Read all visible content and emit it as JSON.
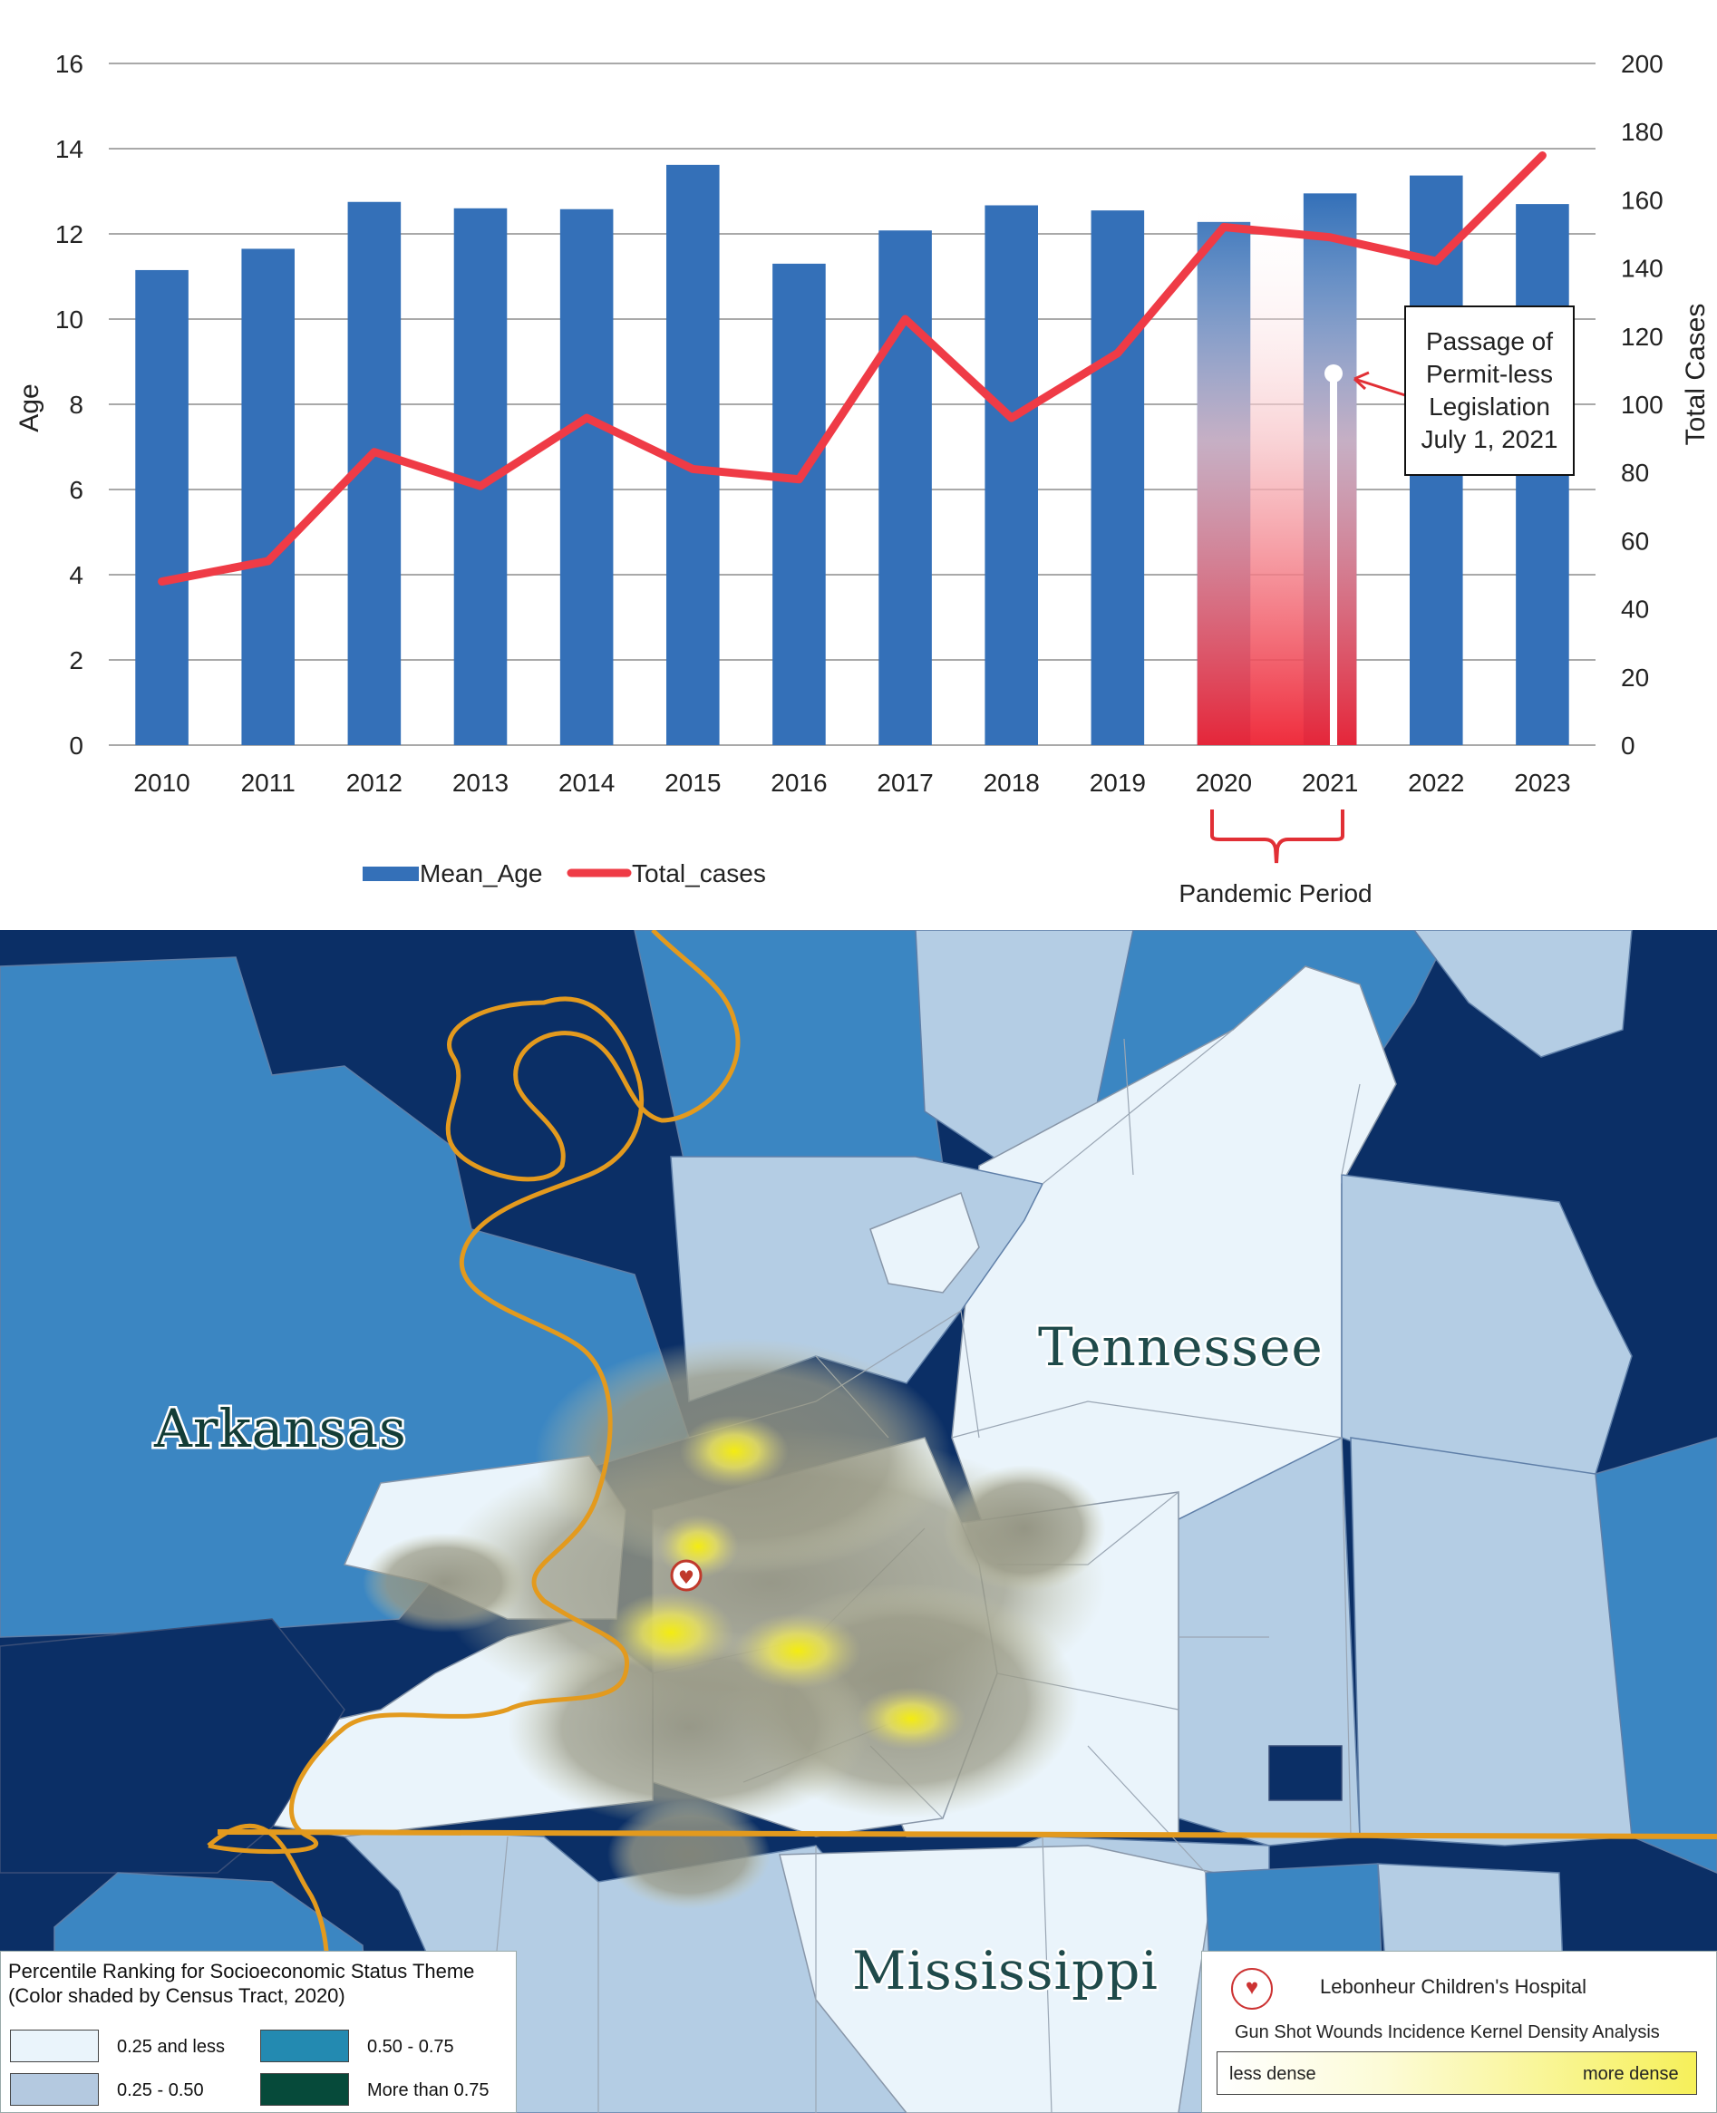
{
  "chart_data": {
    "type": "bar",
    "categories": [
      "2010",
      "2011",
      "2012",
      "2013",
      "2014",
      "2015",
      "2016",
      "2017",
      "2018",
      "2019",
      "2020",
      "2021",
      "2022",
      "2023"
    ],
    "series": [
      {
        "name": "Mean_Age",
        "type": "bar",
        "axis": "left",
        "color": "#3470b8",
        "values": [
          11.15,
          11.65,
          12.75,
          12.6,
          12.58,
          13.62,
          11.3,
          12.08,
          12.67,
          12.55,
          12.28,
          12.95,
          13.37,
          12.7
        ]
      },
      {
        "name": "Total_cases",
        "type": "line",
        "axis": "right",
        "color": "#ef3b46",
        "values": [
          48,
          54,
          86,
          76,
          96,
          81,
          78,
          125,
          96,
          115,
          152,
          149,
          142,
          173
        ]
      }
    ],
    "ylabel": "Age",
    "y2label": "Total Cases",
    "ylim": [
      0,
      16
    ],
    "y2lim": [
      0,
      200
    ],
    "yticks": [
      "0",
      "2",
      "4",
      "6",
      "8",
      "10",
      "12",
      "14",
      "16"
    ],
    "y2ticks": [
      "0",
      "20",
      "40",
      "60",
      "80",
      "100",
      "120",
      "140",
      "160",
      "180",
      "200"
    ],
    "grid": true,
    "legend": {
      "position": "bottom",
      "entries": [
        "Mean_Age",
        "Total_cases"
      ]
    },
    "annotation": {
      "lines": [
        "Passage of",
        "Permit-less",
        "Legislation",
        "July 1, 2021"
      ]
    },
    "highlight": {
      "label": "Pandemic Period",
      "from": "2020",
      "to": "2021"
    }
  },
  "map": {
    "states": {
      "tennessee": "Tennessee",
      "arkansas": "Arkansas",
      "mississippi": "Mississippi"
    },
    "legend": {
      "title_line1": "Percentile Ranking for Socioeconomic Status Theme",
      "title_line2": "(Color shaded by Census Tract, 2020)",
      "classes": [
        {
          "label": "0.25 and less",
          "color": "#eaf4fb"
        },
        {
          "label": "0.25 - 0.50",
          "color": "#b4c9e0"
        },
        {
          "label": "0.50 - 0.75",
          "color": "#238ab1"
        },
        {
          "label": "More than 0.75",
          "color": "#064a3a"
        }
      ]
    },
    "kde_legend": {
      "hospital": "Lebonheur Children's Hospital",
      "title": "Gun Shot Wounds Incidence Kernel Density Analysis",
      "low": "less dense",
      "high": "more dense"
    },
    "colors": {
      "navy": "#0b2f66",
      "mid_blue": "#3b86c2",
      "light_blue": "#b4cde4",
      "pale": "#eaf4fb",
      "river": "#e39a1e"
    },
    "icons": [
      "heart-pulse-icon"
    ]
  }
}
